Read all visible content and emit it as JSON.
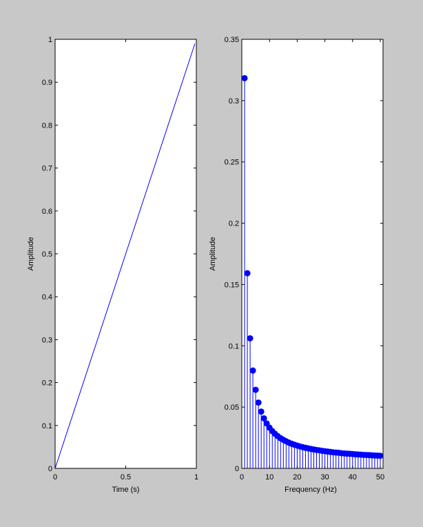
{
  "figure": {
    "background": "#c8c8c8",
    "axes_background": "#ffffff",
    "line_color": "#0000ff"
  },
  "chart_data": [
    {
      "type": "line",
      "xlabel": "Time (s)",
      "ylabel": "Amplitude",
      "xlim": [
        0,
        1
      ],
      "ylim": [
        0,
        1
      ],
      "xticks": [
        0,
        0.5,
        1
      ],
      "xtick_labels": [
        "0",
        "0.5",
        "1"
      ],
      "yticks": [
        0,
        0.1,
        0.2,
        0.3,
        0.4,
        0.5,
        0.6,
        0.7,
        0.8,
        0.9,
        1
      ],
      "ytick_labels": [
        "0",
        "0.1",
        "0.2",
        "0.3",
        "0.4",
        "0.5",
        "0.6",
        "0.7",
        "0.8",
        "0.9",
        "1"
      ],
      "x": [
        0,
        0.99
      ],
      "y": [
        0,
        0.99
      ],
      "grid": false
    },
    {
      "type": "stem",
      "xlabel": "Frequency (Hz)",
      "ylabel": "Amplitude",
      "xlim": [
        0,
        51
      ],
      "ylim": [
        0,
        0.35
      ],
      "xticks": [
        0,
        10,
        20,
        30,
        40,
        50
      ],
      "xtick_labels": [
        "0",
        "10",
        "20",
        "30",
        "40",
        "50"
      ],
      "yticks": [
        0,
        0.05,
        0.1,
        0.15,
        0.2,
        0.25,
        0.3,
        0.35
      ],
      "ytick_labels": [
        "0",
        "0.05",
        "0.1",
        "0.15",
        "0.2",
        "0.25",
        "0.3",
        "0.35"
      ],
      "x": [
        1,
        2,
        3,
        4,
        5,
        6,
        7,
        8,
        9,
        10,
        11,
        12,
        13,
        14,
        15,
        16,
        17,
        18,
        19,
        20,
        21,
        22,
        23,
        24,
        25,
        26,
        27,
        28,
        29,
        30,
        31,
        32,
        33,
        34,
        35,
        36,
        37,
        38,
        39,
        40,
        41,
        42,
        43,
        44,
        45,
        46,
        47,
        48,
        49,
        50
      ],
      "values": [
        0.3183,
        0.1592,
        0.1061,
        0.0798,
        0.0641,
        0.0537,
        0.0463,
        0.0408,
        0.0366,
        0.0332,
        0.0304,
        0.0282,
        0.0263,
        0.0246,
        0.0233,
        0.0221,
        0.021,
        0.0201,
        0.0193,
        0.0186,
        0.0179,
        0.0173,
        0.0168,
        0.0163,
        0.0158,
        0.0154,
        0.015,
        0.0147,
        0.0143,
        0.014,
        0.0137,
        0.0134,
        0.0131,
        0.0129,
        0.0127,
        0.0124,
        0.0122,
        0.012,
        0.0119,
        0.0117,
        0.0115,
        0.0113,
        0.0112,
        0.011,
        0.0109,
        0.0108,
        0.0106,
        0.0105,
        0.0104,
        0.0103
      ],
      "grid": false
    }
  ]
}
